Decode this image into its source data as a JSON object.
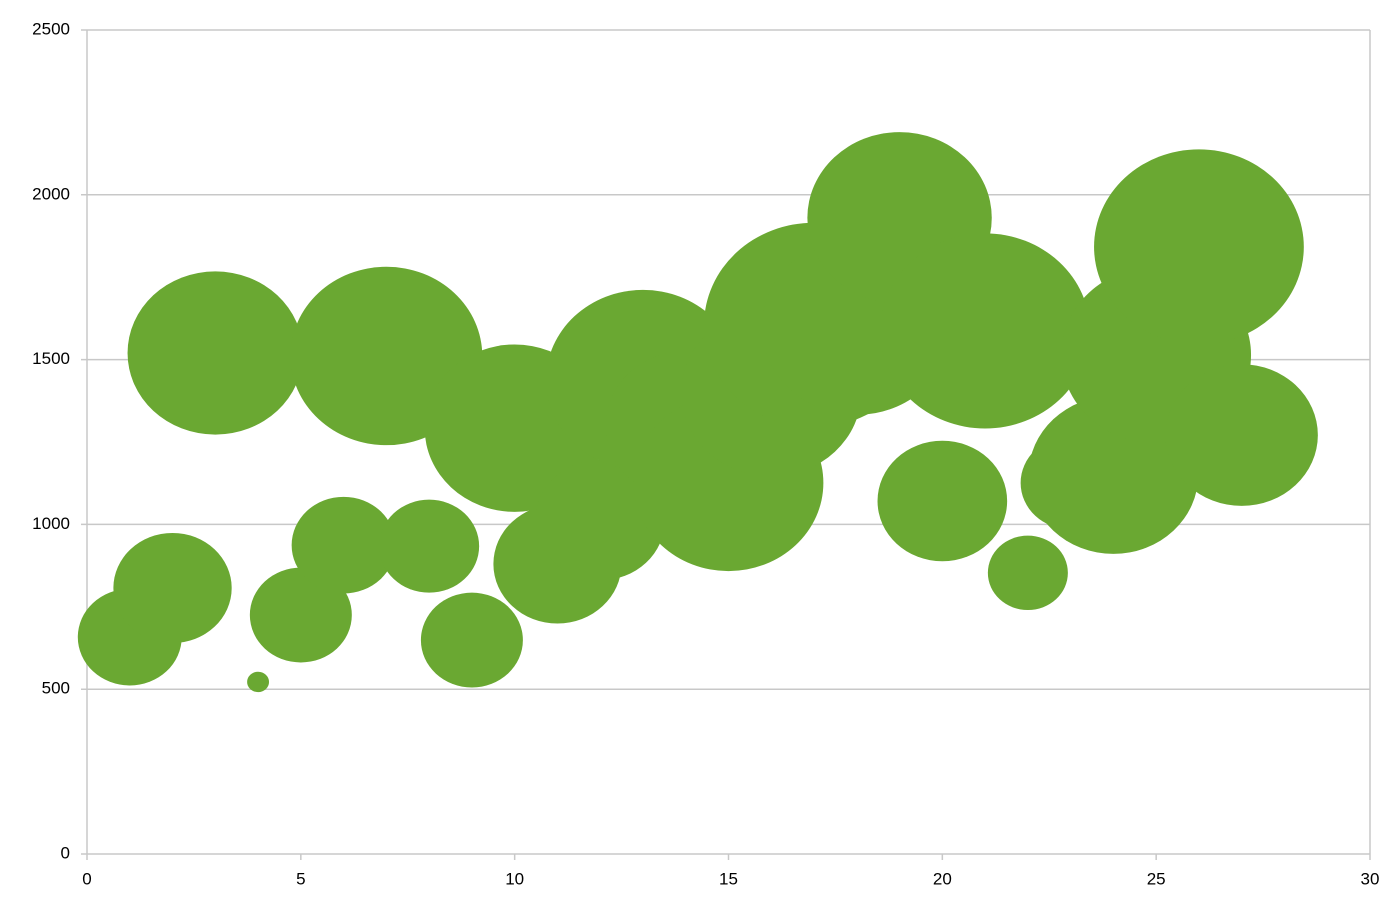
{
  "chart_data": {
    "type": "bubble",
    "x": [
      1,
      2,
      3,
      4,
      5,
      6,
      7,
      8,
      9,
      10,
      11,
      12,
      13,
      14,
      15,
      16,
      17,
      18,
      19,
      20,
      21,
      22,
      23,
      24,
      25,
      26,
      27
    ],
    "series": [
      {
        "color": "#6aa832",
        "values": [
          658,
          807,
          1520,
          522,
          725,
          937,
          1511,
          934,
          649,
          1292,
          880,
          1013,
          1438,
          1300,
          1126,
          1400,
          1605,
          1600,
          1930,
          1071,
          1587,
          853,
          1126,
          1150,
          1514,
          1842,
          1271
        ],
        "sizes": [
          27,
          35,
          77,
          1.2,
          26,
          27,
          92,
          25,
          26,
          81,
          41,
          42,
          94,
          64,
          90,
          81,
          121,
          90,
          85,
          42,
          110,
          16,
          25,
          72,
          90,
          110,
          58
        ]
      }
    ],
    "xlim": [
      0,
      30
    ],
    "xticks": [
      0,
      5,
      10,
      15,
      20,
      25,
      30
    ],
    "ylim": [
      0,
      2500
    ],
    "yticks": [
      0,
      500,
      1000,
      1500,
      2000,
      2500
    ],
    "grid": true
  }
}
